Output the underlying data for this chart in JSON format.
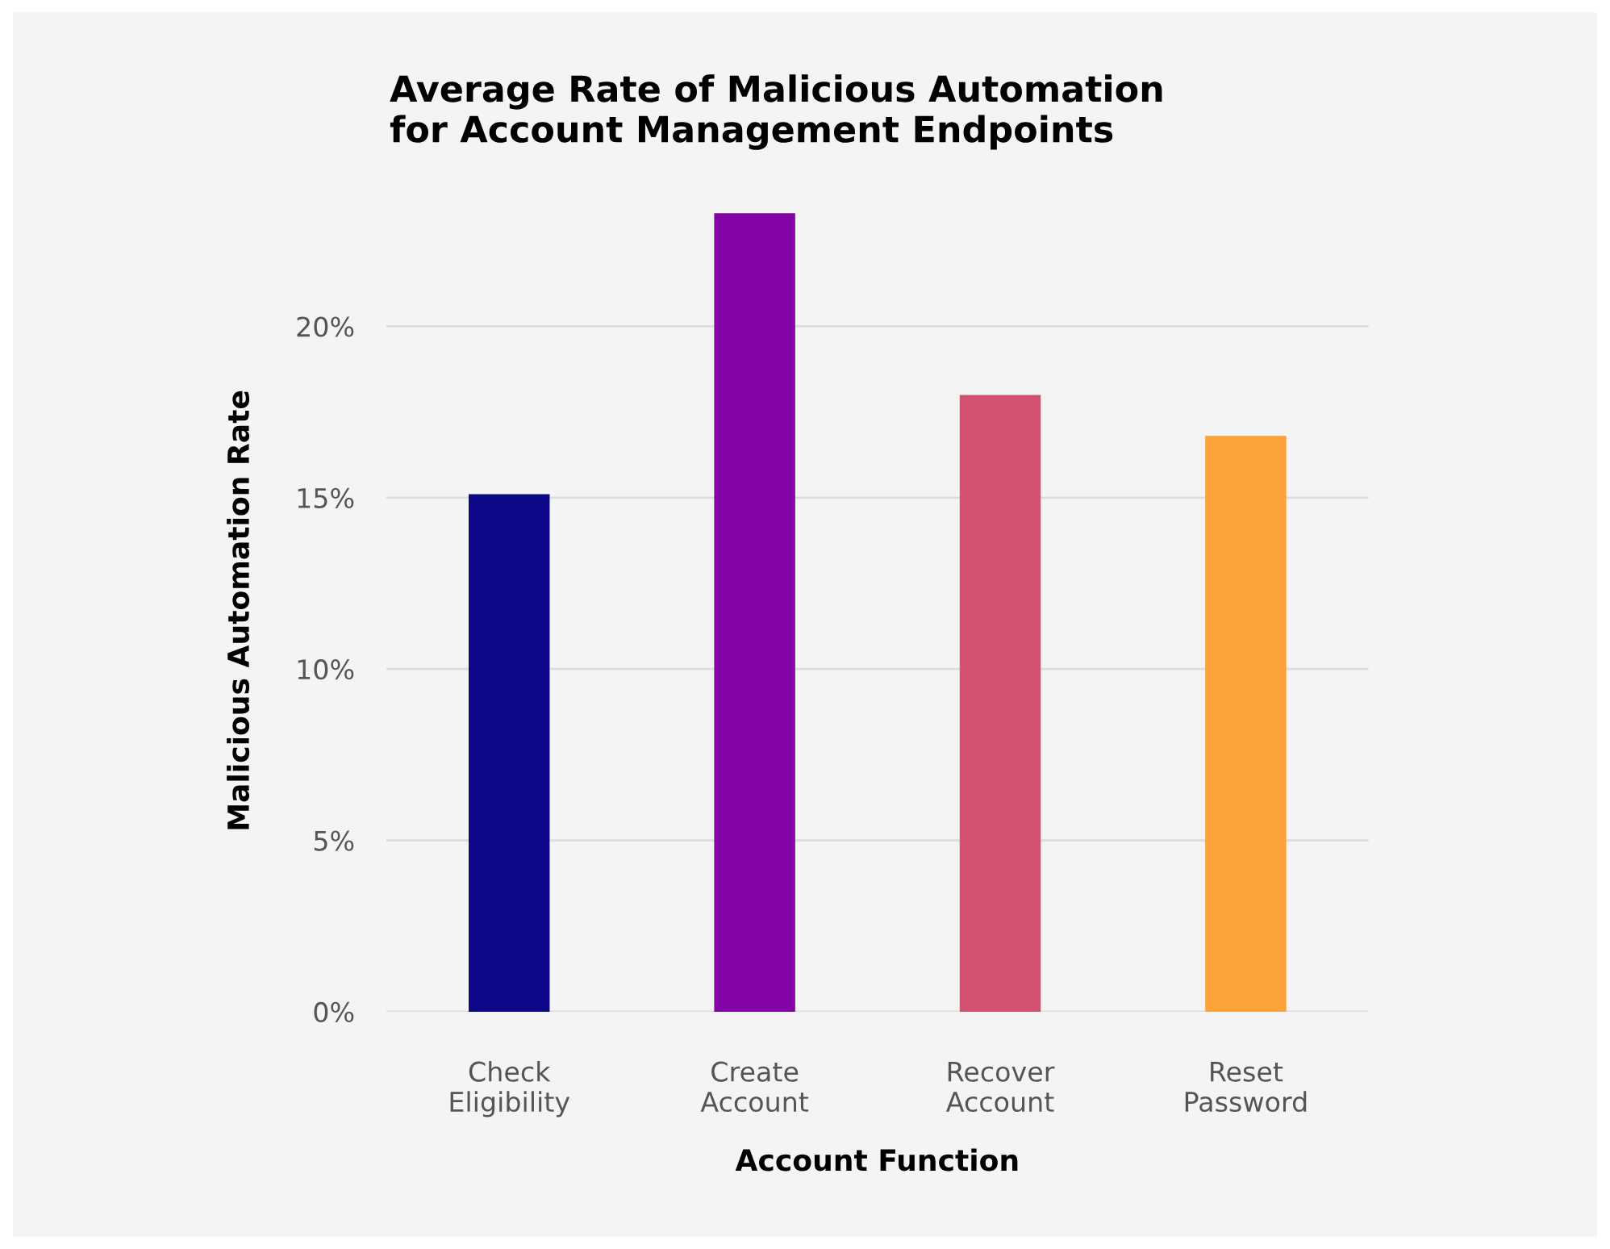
{
  "chart_data": {
    "type": "bar",
    "title": "Average Rate of Malicious Automation\nfor Account Management Endpoints",
    "xlabel": "Account Function",
    "ylabel": "Malicious Automation Rate",
    "categories": [
      "Check\nEligibility",
      "Create\nAccount",
      "Recover\nAccount",
      "Reset\nPassword"
    ],
    "values": [
      15.1,
      23.3,
      18.0,
      16.8
    ],
    "colors": [
      "#0d0887",
      "#8405a7",
      "#d35171",
      "#fba238"
    ],
    "ylim": [
      0,
      23.4
    ],
    "yticks": [
      {
        "value": 0,
        "label": "0%"
      },
      {
        "value": 5,
        "label": "5%"
      },
      {
        "value": 10,
        "label": "10%"
      },
      {
        "value": 15,
        "label": "15%"
      },
      {
        "value": 20,
        "label": "20%"
      }
    ],
    "grid": "y",
    "legend": false
  }
}
